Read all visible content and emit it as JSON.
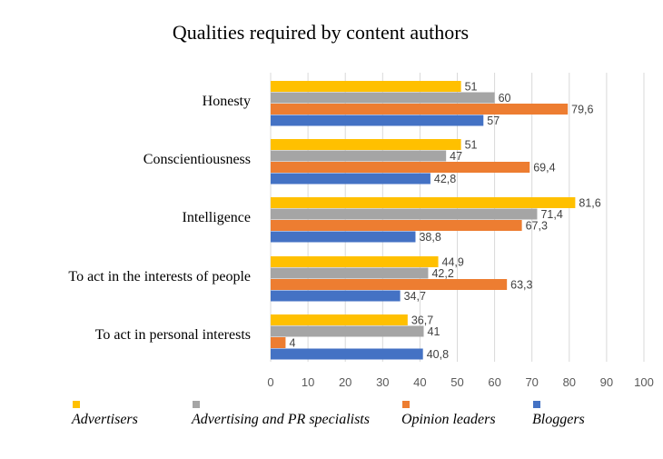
{
  "chart_data": {
    "type": "bar",
    "orientation": "horizontal",
    "title": "Qualities required by content authors",
    "categories": [
      "Honesty",
      "Conscientiousness",
      "Intelligence",
      "To act in the interests of people",
      "To act in personal interests"
    ],
    "series": [
      {
        "name": "Advertisers",
        "color": "#FFC000",
        "values": [
          51,
          51,
          81.6,
          44.9,
          36.7
        ],
        "labels": [
          "51",
          "51",
          "81,6",
          "44,9",
          "36,7"
        ]
      },
      {
        "name": "Advertising and PR specialists",
        "color": "#A5A5A5",
        "values": [
          60,
          47,
          71.4,
          42.2,
          41
        ],
        "labels": [
          "60",
          "47",
          "71,4",
          "42,2",
          "41"
        ]
      },
      {
        "name": "Opinion leaders",
        "color": "#ED7D31",
        "values": [
          79.6,
          69.4,
          67.3,
          63.3,
          4
        ],
        "labels": [
          "79,6",
          "69,4",
          "67,3",
          "63,3",
          "4"
        ]
      },
      {
        "name": "Bloggers",
        "color": "#4472C4",
        "values": [
          57,
          42.8,
          38.8,
          34.7,
          40.8
        ],
        "labels": [
          "57",
          "42,8",
          "38,8",
          "34,7",
          "40,8"
        ]
      }
    ],
    "xlim": [
      0,
      100
    ],
    "xticks": [
      "0",
      "10",
      "20",
      "30",
      "40",
      "50",
      "60",
      "70",
      "80",
      "90",
      "100"
    ],
    "grid": true,
    "legend_position": "bottom"
  }
}
